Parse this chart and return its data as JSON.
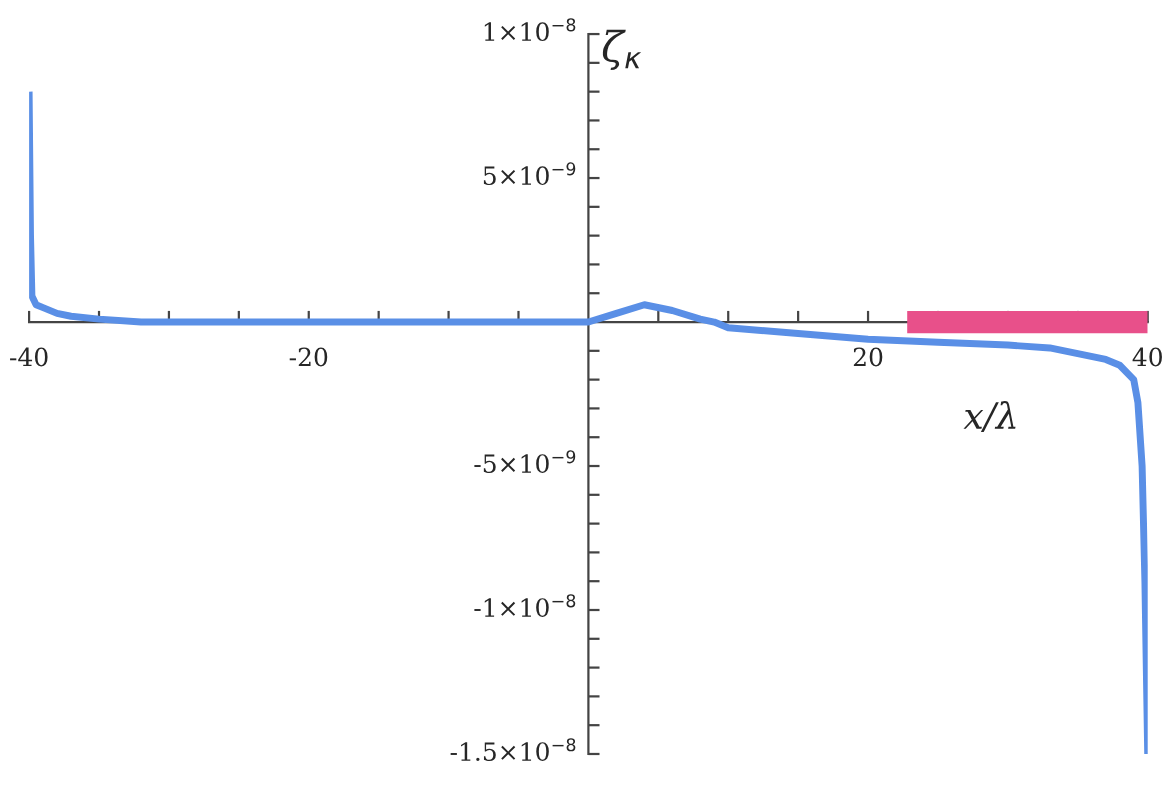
{
  "chart_data": {
    "type": "line",
    "xlabel": "x/λ",
    "ylabel": "ζ$_{κ}$",
    "xlim": [
      -40,
      40
    ],
    "ylim": [
      -1.5e-08,
      1e-08
    ],
    "xticks": [
      {
        "value": -40,
        "label": "-40"
      },
      {
        "value": -35,
        "label": null
      },
      {
        "value": -30,
        "label": null
      },
      {
        "value": -25,
        "label": null
      },
      {
        "value": -20,
        "label": "-20"
      },
      {
        "value": -15,
        "label": null
      },
      {
        "value": -10,
        "label": null
      },
      {
        "value": -5,
        "label": null
      },
      {
        "value": 5,
        "label": null
      },
      {
        "value": 10,
        "label": null
      },
      {
        "value": 15,
        "label": null
      },
      {
        "value": 20,
        "label": "20"
      },
      {
        "value": 25,
        "label": null
      },
      {
        "value": 30,
        "label": null
      },
      {
        "value": 35,
        "label": null
      },
      {
        "value": 40,
        "label": "40"
      }
    ],
    "yticks": [
      {
        "value": -1.5e-08,
        "label": "-1.5×10$^{−8}$"
      },
      {
        "value": -1.4e-08,
        "label": null
      },
      {
        "value": -1.3e-08,
        "label": null
      },
      {
        "value": -1.2e-08,
        "label": null
      },
      {
        "value": -1.1e-08,
        "label": null
      },
      {
        "value": -1e-08,
        "label": "-1×10$^{−8}$"
      },
      {
        "value": -9e-09,
        "label": null
      },
      {
        "value": -8e-09,
        "label": null
      },
      {
        "value": -7e-09,
        "label": null
      },
      {
        "value": -6e-09,
        "label": null
      },
      {
        "value": -5e-09,
        "label": "-5×10$^{−9}$"
      },
      {
        "value": -4e-09,
        "label": null
      },
      {
        "value": -3e-09,
        "label": null
      },
      {
        "value": -2e-09,
        "label": null
      },
      {
        "value": -1e-09,
        "label": null
      },
      {
        "value": 1e-09,
        "label": null
      },
      {
        "value": 2e-09,
        "label": null
      },
      {
        "value": 3e-09,
        "label": null
      },
      {
        "value": 4e-09,
        "label": null
      },
      {
        "value": 5e-09,
        "label": "5×10$^{−9}$"
      },
      {
        "value": 6e-09,
        "label": null
      },
      {
        "value": 7e-09,
        "label": null
      },
      {
        "value": 8e-09,
        "label": null
      },
      {
        "value": 9e-09,
        "label": null
      },
      {
        "value": 1e-08,
        "label": "1×10$^{−8}$"
      }
    ],
    "grid": false,
    "legend": false,
    "series": [
      {
        "color": "#e8508a",
        "x": [
          22.8,
          40
        ],
        "values": [
          0,
          0
        ]
      },
      {
        "color": "#5a8fe6",
        "x": [
          -40,
          -39.9,
          -39.8,
          -39.5,
          -39,
          -38,
          -37,
          -35,
          -32,
          -25,
          -15,
          -5,
          -2,
          0,
          2,
          4,
          6,
          8,
          9,
          10,
          15,
          20,
          25,
          30,
          33,
          35,
          37,
          38,
          39,
          39.3,
          39.6,
          39.8,
          40
        ],
        "values": [
          8e-09,
          3e-09,
          9e-10,
          6e-10,
          5e-10,
          3e-10,
          2e-10,
          1e-10,
          0,
          0,
          0,
          0,
          0,
          0,
          3e-10,
          6e-10,
          4e-10,
          1e-10,
          0,
          -2e-10,
          -4e-10,
          -6e-10,
          -7e-10,
          -8e-10,
          -9e-10,
          -1.1e-09,
          -1.3e-09,
          -1.5e-09,
          -2e-09,
          -2.8e-09,
          -5e-09,
          -9e-09,
          -1.5e-08
        ]
      }
    ]
  }
}
